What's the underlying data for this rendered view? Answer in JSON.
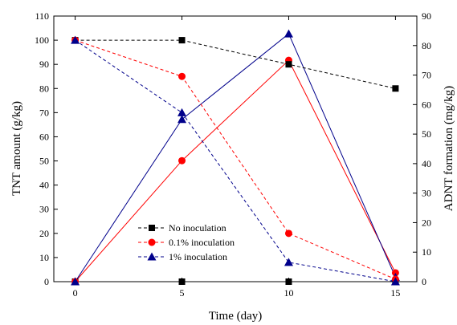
{
  "chart_data": {
    "type": "line",
    "title": "",
    "xlabel": "Time (day)",
    "ylabel_left": "TNT amount (g/kg)",
    "ylabel_right": "ADNT formation (mg/kg)",
    "xlim": [
      -1,
      16
    ],
    "ylim_left": [
      0,
      110
    ],
    "ylim_right": [
      0,
      90
    ],
    "x_ticks": [
      0,
      5,
      10,
      15
    ],
    "y_ticks_left": [
      0,
      10,
      20,
      30,
      40,
      50,
      60,
      70,
      80,
      90,
      100,
      110
    ],
    "y_ticks_right": [
      0,
      10,
      20,
      30,
      40,
      50,
      60,
      70,
      80,
      90
    ],
    "grid": false,
    "legend_position": "bottom-left",
    "x": [
      0,
      5,
      10,
      15
    ],
    "series": [
      {
        "name": "No inoculation",
        "axis": "left",
        "line": "dashed",
        "marker": "square",
        "color": "#000000",
        "values": [
          100,
          100,
          90,
          80
        ]
      },
      {
        "name": "0.1% inoculation",
        "axis": "left",
        "line": "dashed",
        "marker": "circle",
        "color": "#ff0000",
        "values": [
          100,
          85,
          20,
          1
        ]
      },
      {
        "name": "1% inoculation",
        "axis": "left",
        "line": "dashed",
        "marker": "triangle",
        "color": "#00008b",
        "values": [
          100,
          70,
          8,
          0
        ]
      },
      {
        "axis": "right",
        "line": "solid",
        "marker": "square",
        "color": "#000000",
        "values": [
          0,
          0,
          0,
          0
        ]
      },
      {
        "axis": "right",
        "line": "solid",
        "marker": "circle",
        "color": "#ff0000",
        "values": [
          0,
          41,
          75,
          3
        ]
      },
      {
        "axis": "right",
        "line": "solid",
        "marker": "triangle",
        "color": "#00008b",
        "values": [
          0,
          55,
          84,
          1.5
        ]
      }
    ]
  }
}
